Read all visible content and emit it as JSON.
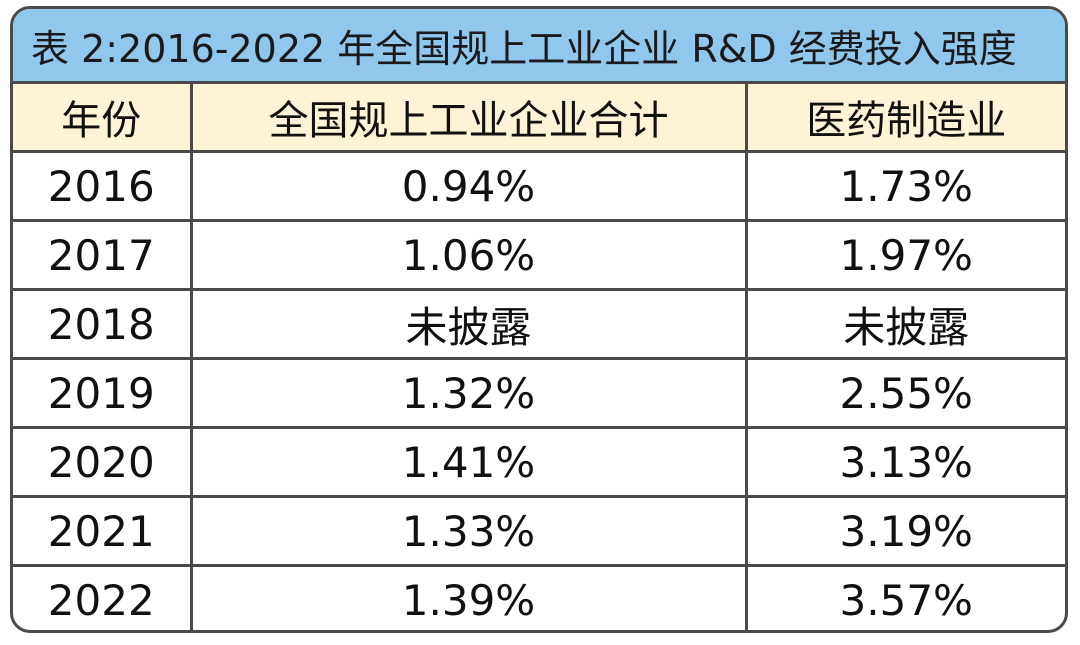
{
  "title": "表 2:2016-2022 年全国规上工业企业 R&D 经费投入强度",
  "table": {
    "headers": [
      "年份",
      "全国规上工业企业合计",
      "医药制造业"
    ],
    "rows": [
      [
        "2016",
        "0.94%",
        "1.73%"
      ],
      [
        "2017",
        "1.06%",
        "1.97%"
      ],
      [
        "2018",
        "未披露",
        "未披露"
      ],
      [
        "2019",
        "1.32%",
        "2.55%"
      ],
      [
        "2020",
        "1.41%",
        "3.13%"
      ],
      [
        "2021",
        "1.33%",
        "3.19%"
      ],
      [
        "2022",
        "1.39%",
        "3.57%"
      ]
    ]
  },
  "colors": {
    "title_bar": "#8fc8ec",
    "header_row": "#fdf3d6",
    "border": "#4a4a4a"
  }
}
